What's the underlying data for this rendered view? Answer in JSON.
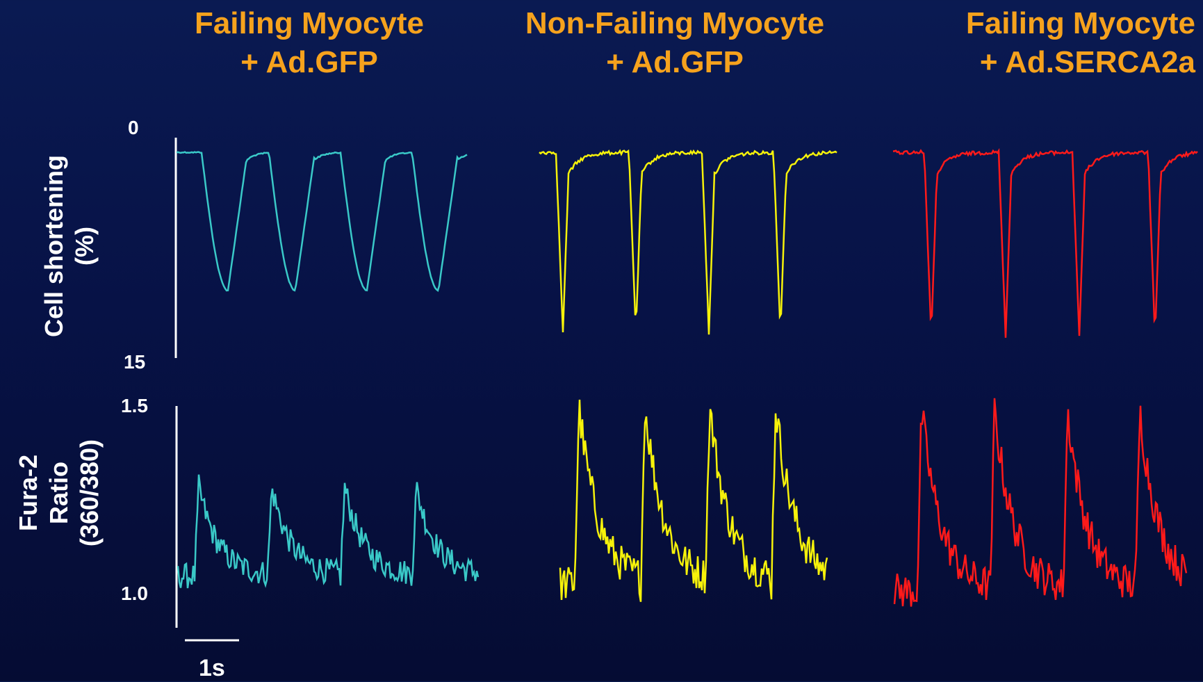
{
  "chart_data": {
    "type": "line",
    "panels": [
      {
        "title_line1": "Failing Myocyte",
        "title_line2": "+ Ad.GFP",
        "color": "#3ac9c8",
        "shortening": {
          "beats": 4,
          "trough": 10.4,
          "relax": "slow"
        },
        "fura": {
          "beats": 4,
          "peak": 1.28,
          "baseline": 1.04
        }
      },
      {
        "title_line1": "Non-Failing Myocyte",
        "title_line2": "+ Ad.GFP",
        "color": "#f6f20a",
        "shortening": {
          "beats": 4,
          "trough": 13.3,
          "relax": "fast"
        },
        "fura": {
          "beats": 4,
          "peak": 1.5,
          "baseline": 1.02
        }
      },
      {
        "title_line1": "Failing Myocyte",
        "title_line2": "+ Ad.SERCA2a",
        "color": "#ff1a1a",
        "shortening": {
          "beats": 4,
          "trough": 13.6,
          "relax": "fast"
        },
        "fura": {
          "beats": 4,
          "peak": 1.49,
          "baseline": 1.0
        }
      }
    ],
    "shortening_axis": {
      "label_line1": "Cell shortening",
      "label_line2": "(%)",
      "tick_top": "0",
      "tick_bottom": "15",
      "ylim": [
        0,
        15
      ]
    },
    "fura_axis": {
      "label_line1": "Fura-2",
      "label_line2": "Ratio",
      "label_line3": "(360/380)",
      "tick_top": "1.5",
      "tick_bottom": "1.0",
      "ylim": [
        0.9,
        1.5
      ]
    },
    "scale_bar": {
      "label": "1s",
      "duration_s": 1
    }
  }
}
